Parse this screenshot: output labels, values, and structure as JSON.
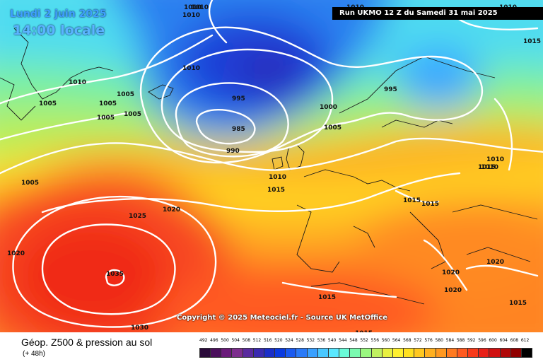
{
  "header": {
    "date": "Lundi 2 juin 2025",
    "time": "14:00 locale",
    "run": "Run UKMO 12 Z du Samedi 31 mai 2025"
  },
  "copyright": "Copyright © 2025 Meteociel.fr - Source UK MetOffice",
  "footer": {
    "title": "Géop. Z500 & pression au sol",
    "subtitle": "(+ 48h)"
  },
  "legend": {
    "ticks": [
      "492",
      "496",
      "500",
      "504",
      "508",
      "512",
      "516",
      "520",
      "524",
      "528",
      "532",
      "536",
      "540",
      "544",
      "548",
      "552",
      "556",
      "560",
      "564",
      "568",
      "572",
      "576",
      "580",
      "584",
      "588",
      "592",
      "596",
      "600",
      "604",
      "608",
      "612"
    ],
    "colors": [
      "#2a0a3a",
      "#4b0f5c",
      "#6a1a7a",
      "#7d2e8e",
      "#5a2a9e",
      "#3a2ab0",
      "#1a2ec8",
      "#0a3ae0",
      "#1a5af0",
      "#2a7af8",
      "#3aa0ff",
      "#4ac8ff",
      "#5ae8ff",
      "#6afad8",
      "#7afab0",
      "#9af880",
      "#c0f060",
      "#e8f040",
      "#fff030",
      "#ffe020",
      "#ffc820",
      "#ffb020",
      "#ff9820",
      "#ff7a20",
      "#ff5a20",
      "#f83a1a",
      "#e82018",
      "#d01010",
      "#b00808",
      "#900000",
      "#000000"
    ]
  },
  "pressure_labels": [
    {
      "text": "1010"
    },
    {
      "text": "1010"
    },
    {
      "text": "1010"
    },
    {
      "text": "1010"
    },
    {
      "text": "1015"
    },
    {
      "text": "1010"
    },
    {
      "text": "1005"
    },
    {
      "text": "1005"
    },
    {
      "text": "1005"
    },
    {
      "text": "1005"
    },
    {
      "text": "1005"
    },
    {
      "text": "1010"
    },
    {
      "text": "995"
    },
    {
      "text": "985"
    },
    {
      "text": "990"
    },
    {
      "text": "1000"
    },
    {
      "text": "1005"
    },
    {
      "text": "995"
    },
    {
      "text": "1010"
    },
    {
      "text": "1015"
    },
    {
      "text": "1010"
    },
    {
      "text": "1010"
    },
    {
      "text": "1015"
    },
    {
      "text": "1015"
    },
    {
      "text": "1005"
    },
    {
      "text": "1025"
    },
    {
      "text": "1020"
    },
    {
      "text": "1020"
    },
    {
      "text": "1035"
    },
    {
      "text": "1030"
    },
    {
      "text": "1020"
    },
    {
      "text": "1020"
    },
    {
      "text": "1020"
    },
    {
      "text": "1015"
    },
    {
      "text": "1015"
    },
    {
      "text": "1015"
    },
    {
      "text": "1015"
    },
    {
      "text": "1010"
    }
  ]
}
